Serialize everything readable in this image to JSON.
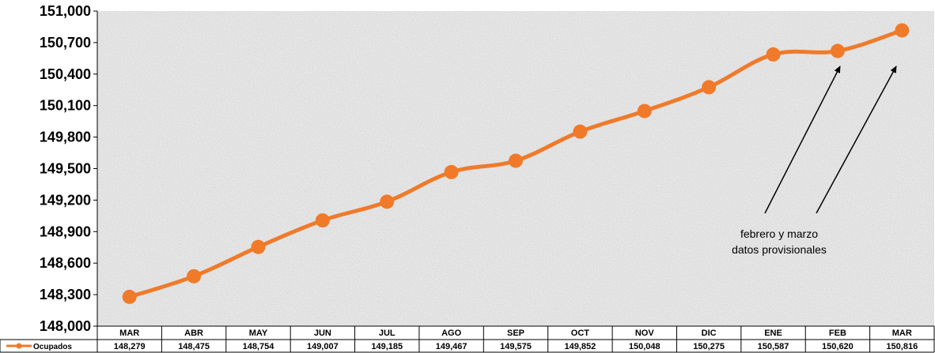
{
  "chart_data": {
    "type": "line",
    "title": "",
    "xlabel": "",
    "ylabel": "",
    "categories": [
      "MAR",
      "ABR",
      "MAY",
      "JUN",
      "JUL",
      "AGO",
      "SEP",
      "OCT",
      "NOV",
      "DIC",
      "ENE",
      "FEB",
      "MAR"
    ],
    "series": [
      {
        "name": "Ocupados",
        "color": "#F07A2A",
        "values": [
          148279,
          148475,
          148754,
          149007,
          149185,
          149467,
          149575,
          149852,
          150048,
          150275,
          150587,
          150620,
          150816
        ]
      }
    ],
    "value_labels": [
      "148,279",
      "148,475",
      "148,754",
      "149,007",
      "149,185",
      "149,467",
      "149,575",
      "149,852",
      "150,048",
      "150,275",
      "150,587",
      "150,620",
      "150,816"
    ],
    "ylim": [
      148000,
      151000
    ],
    "yticks": [
      148000,
      148300,
      148600,
      148900,
      149200,
      149500,
      149800,
      150100,
      150400,
      150700,
      151000
    ],
    "ytick_labels": [
      "148,000",
      "148,300",
      "148,600",
      "148,900",
      "149,200",
      "149,500",
      "149,800",
      "150,100",
      "150,400",
      "150,700",
      "151,000"
    ],
    "grid": false,
    "legend": "bottom-left data table",
    "annotation": {
      "lines": [
        "febrero y marzo",
        "datos provisionales"
      ],
      "arrow_targets": [
        "FEB",
        "MAR"
      ]
    }
  }
}
